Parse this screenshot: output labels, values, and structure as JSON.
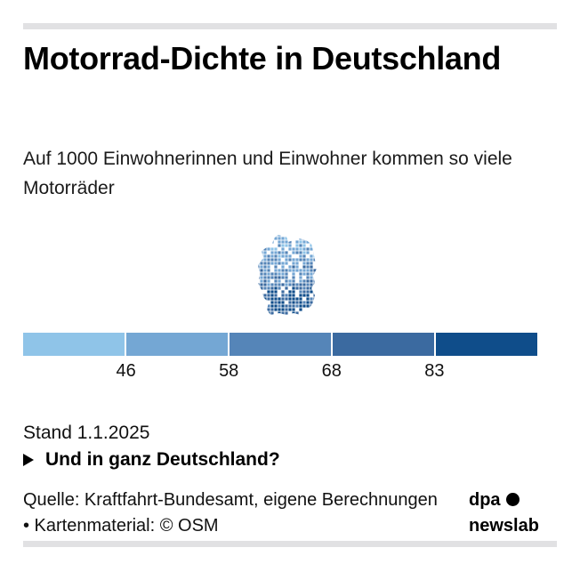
{
  "header": {
    "title": "Motorrad-Dichte in Deutschland",
    "subtitle": "Auf 1000 Einwohnerinnen und Einwohner kommen so viele Motorräder"
  },
  "map": {
    "region": "Deutschland",
    "type": "choropleth",
    "description": "Kreise in Deutschland, eingefärbt nach Motorrad-Dichte; höchste Werte im Süden (Bayern, Baden-Württemberg)"
  },
  "legend": {
    "colors": [
      "#8fc4e8",
      "#74a7d4",
      "#5585b8",
      "#3b6aa0",
      "#0f4d8a"
    ],
    "thresholds": [
      "46",
      "58",
      "68",
      "83"
    ]
  },
  "footer": {
    "stand": "Stand 1.1.2025",
    "expander_label": "Und in ganz Deutschland?",
    "source": "Quelle: Kraftfahrt-Bundesamt, eigene Berechnungen • Kartenmaterial: © OSM",
    "brand_line1": "dpa",
    "brand_line2": "newslab"
  }
}
